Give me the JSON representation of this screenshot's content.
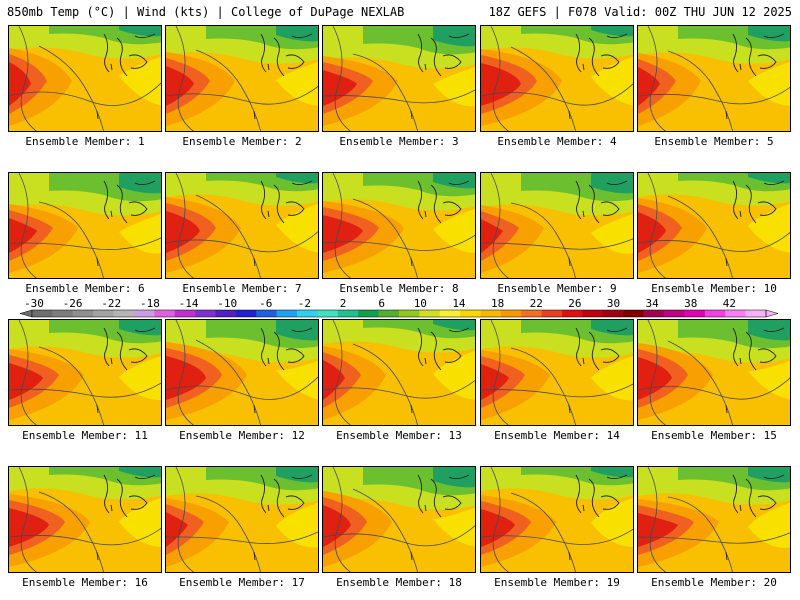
{
  "header": {
    "left": "850mb Temp (°C) | Wind (kts) | College of DuPage NEXLAB",
    "right": "18Z GEFS | F078 Valid: 00Z THU JUN 12 2025"
  },
  "panels": [
    {
      "label": "Ensemble Member: 1"
    },
    {
      "label": "Ensemble Member: 2"
    },
    {
      "label": "Ensemble Member: 3"
    },
    {
      "label": "Ensemble Member: 4"
    },
    {
      "label": "Ensemble Member: 5"
    },
    {
      "label": "Ensemble Member: 6"
    },
    {
      "label": "Ensemble Member: 7"
    },
    {
      "label": "Ensemble Member: 8"
    },
    {
      "label": "Ensemble Member: 9"
    },
    {
      "label": "Ensemble Member: 10"
    },
    {
      "label": "Ensemble Member: 11"
    },
    {
      "label": "Ensemble Member: 12"
    },
    {
      "label": "Ensemble Member: 13"
    },
    {
      "label": "Ensemble Member: 14"
    },
    {
      "label": "Ensemble Member: 15"
    },
    {
      "label": "Ensemble Member: 16"
    },
    {
      "label": "Ensemble Member: 17"
    },
    {
      "label": "Ensemble Member: 18"
    },
    {
      "label": "Ensemble Member: 19"
    },
    {
      "label": "Ensemble Member: 20"
    }
  ],
  "colorbar": {
    "ticks": [
      "-30",
      "-26",
      "-22",
      "-18",
      "-14",
      "-10",
      "-6",
      "-2",
      "2",
      "6",
      "10",
      "14",
      "18",
      "22",
      "26",
      "30",
      "34",
      "38",
      "42"
    ],
    "colors": [
      "#6e6e6e",
      "#7d7d7d",
      "#8f8f8f",
      "#a3a3a3",
      "#b5b5b5",
      "#c8a0e0",
      "#e060e0",
      "#c030d0",
      "#8030d0",
      "#5020c0",
      "#2020d0",
      "#2060e0",
      "#20a0f0",
      "#30d0f0",
      "#40e0c0",
      "#20c090",
      "#10a050",
      "#50b030",
      "#90c820",
      "#d0e020",
      "#f8f030",
      "#f8d800",
      "#f8b800",
      "#f89800",
      "#f07020",
      "#e84020",
      "#e01010",
      "#c00010",
      "#a00010",
      "#800000",
      "#a00050",
      "#c00080",
      "#e000b0",
      "#f040e0",
      "#f880f0",
      "#f8b0f8"
    ]
  },
  "colors": {
    "north_green": "#6cc030",
    "north_dark": "#20a060",
    "yellow_green": "#c8e020",
    "yellow": "#f8e000",
    "orange_yellow": "#f8c000",
    "orange": "#f8a000",
    "orange_red": "#f06020",
    "red": "#e02010",
    "contour": "#4a4a4a"
  }
}
